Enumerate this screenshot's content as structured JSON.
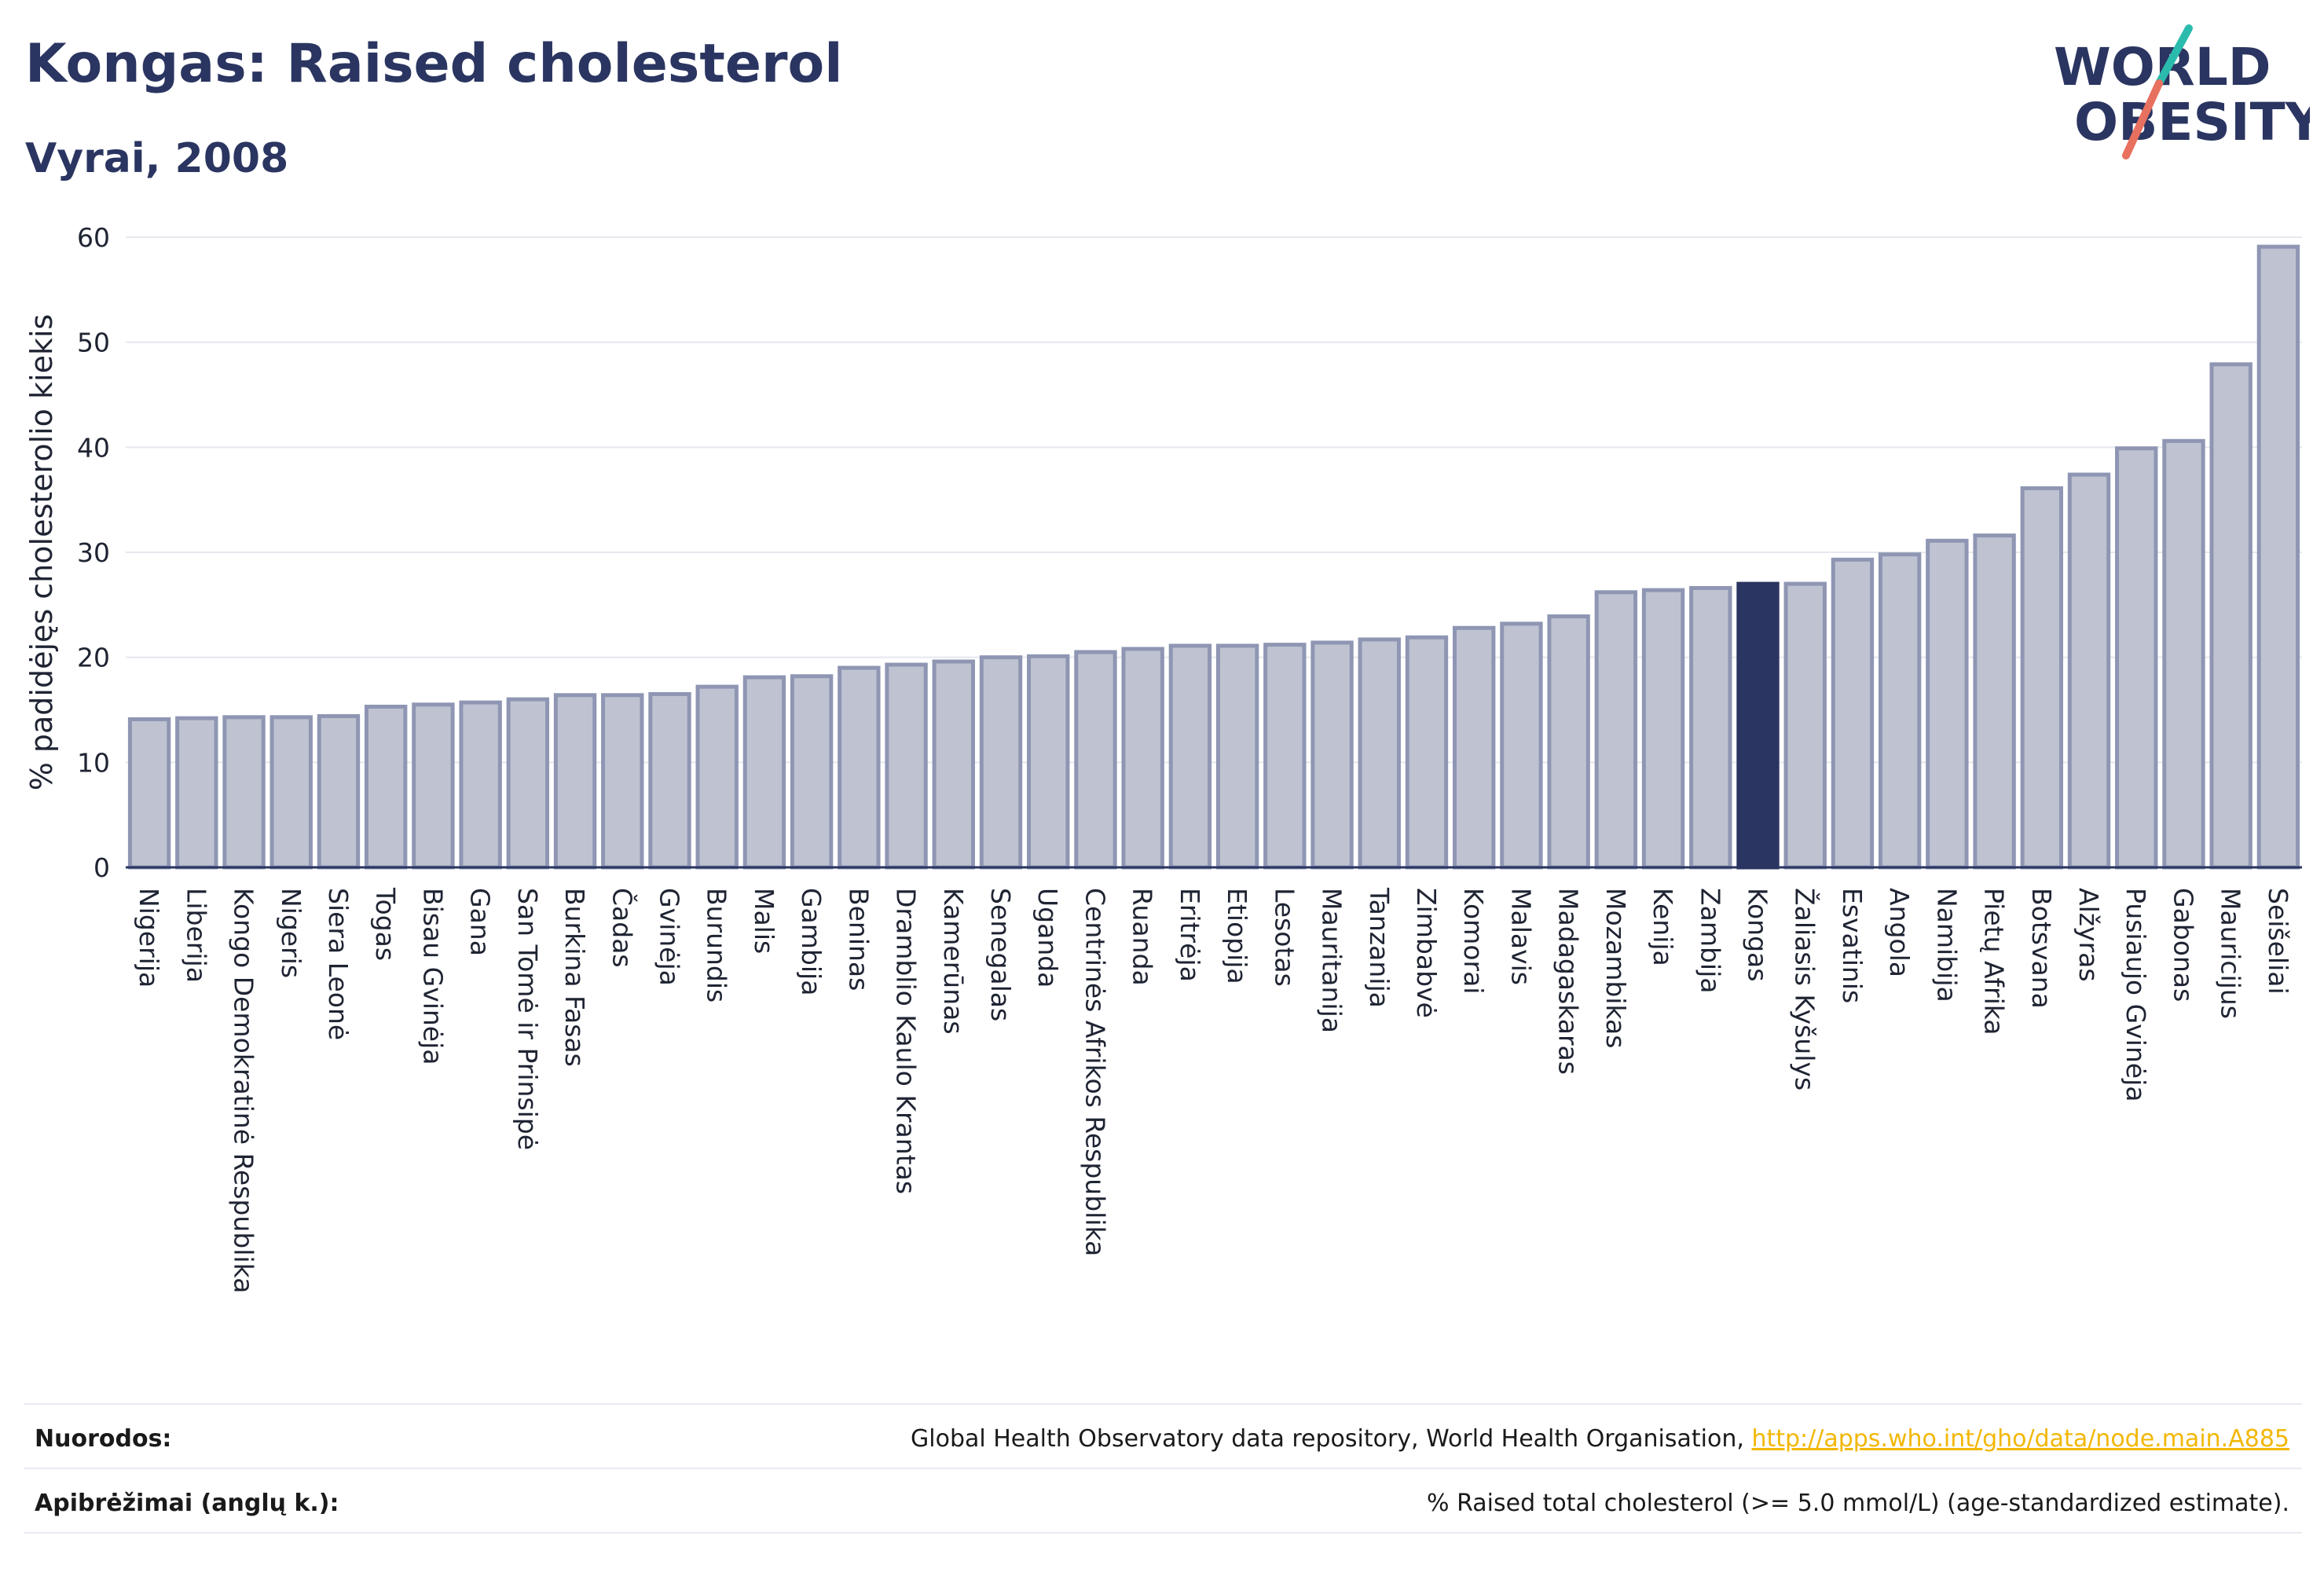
{
  "header": {
    "title": "Kongas: Raised cholesterol",
    "subtitle": "Vyrai, 2008"
  },
  "logo": {
    "line1": "WORLD",
    "line2": "OBESITY",
    "colors": {
      "text": "#2b3561",
      "slash_teal": "#2bbbad",
      "slash_red": "#e8705f"
    }
  },
  "chart_data": {
    "type": "bar",
    "ylabel": "% padidėjęs cholesterolio kiekis",
    "ylim": [
      0,
      60
    ],
    "yticks": [
      0,
      10,
      20,
      30,
      40,
      50,
      60
    ],
    "grid": true,
    "highlight": "Kongas",
    "colors": {
      "bar": "#bfc3d1",
      "bar_edge": "#8e96b3",
      "highlight": "#2b3561",
      "grid": "#e6e8ef",
      "axis": "#2b3561"
    },
    "categories": [
      "Nigerija",
      "Liberija",
      "Kongo Demokratinė Respublika",
      "Nigeris",
      "Siera Leonė",
      "Togas",
      "Bisau Gvinėja",
      "Gana",
      "San Tomė ir Prinsipė",
      "Burkina Fasas",
      "Čadas",
      "Gvinėja",
      "Burundis",
      "Malis",
      "Gambija",
      "Beninas",
      "Dramblio Kaulo Krantas",
      "Kamerūnas",
      "Senegalas",
      "Uganda",
      "Centrinės Afrikos Respublika",
      "Ruanda",
      "Eritrėja",
      "Etiopija",
      "Lesotas",
      "Mauritanija",
      "Tanzanija",
      "Zimbabvė",
      "Komorai",
      "Malavis",
      "Madagaskaras",
      "Mozambikas",
      "Kenija",
      "Zambija",
      "Kongas",
      "Žaliasis Kyšulys",
      "Esvatinis",
      "Angola",
      "Namibija",
      "Pietų Afrika",
      "Botsvana",
      "Alžyras",
      "Pusiaujo Gvinėja",
      "Gabonas",
      "Mauricijus",
      "Seišeliai"
    ],
    "values": [
      14.1,
      14.2,
      14.3,
      14.3,
      14.4,
      15.3,
      15.5,
      15.7,
      16.0,
      16.4,
      16.4,
      16.5,
      17.2,
      18.1,
      18.2,
      19.0,
      19.3,
      19.6,
      20.0,
      20.1,
      20.5,
      20.8,
      21.1,
      21.1,
      21.2,
      21.4,
      21.7,
      21.9,
      22.8,
      23.2,
      23.9,
      26.2,
      26.4,
      26.6,
      27.0,
      27.0,
      29.3,
      29.8,
      31.1,
      31.6,
      36.1,
      37.4,
      39.9,
      40.6,
      47.9,
      59.1
    ]
  },
  "footer": {
    "sources_label": "Nuorodos:",
    "sources_text": "Global Health Observatory data repository, World Health Organisation, ",
    "sources_link": "http://apps.who.int/gho/data/node.main.A885",
    "definitions_label": "Apibrėžimai (anglų k.):",
    "definitions_text": "% Raised total cholesterol (>= 5.0 mmol/L) (age-standardized estimate)."
  }
}
